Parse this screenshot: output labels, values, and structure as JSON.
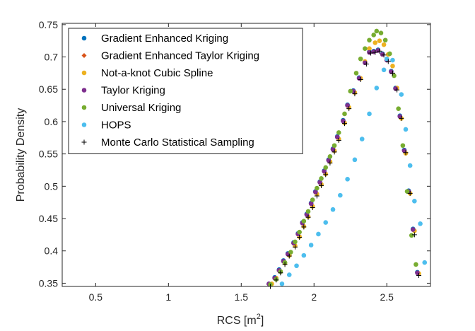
{
  "chart_data": {
    "type": "scatter",
    "title": "",
    "xlabel": "RCS [m",
    "xlabel_sup": "2",
    "xlabel_close": "]",
    "ylabel": "Probability Density",
    "xlim": [
      0.27,
      2.8
    ],
    "ylim": [
      0.345,
      0.752
    ],
    "xticks": [
      "0.5",
      "1",
      "1.5",
      "2",
      "2.5"
    ],
    "xtick_values": [
      0.5,
      1,
      1.5,
      2,
      2.5
    ],
    "yticks": [
      "0.35",
      "0.4",
      "0.45",
      "0.5",
      "0.55",
      "0.6",
      "0.65",
      "0.7",
      "0.75"
    ],
    "ytick_values": [
      0.35,
      0.4,
      0.45,
      0.5,
      0.55,
      0.6,
      0.65,
      0.7,
      0.75
    ],
    "grid": false,
    "legend_position": "top-left",
    "series": [
      {
        "name": "Gradient Enhanced Kriging",
        "marker": "dot",
        "color": "#0072BD",
        "points": [
          [
            1.69,
            0.349
          ],
          [
            1.73,
            0.359
          ],
          [
            1.76,
            0.371
          ],
          [
            1.79,
            0.385
          ],
          [
            1.82,
            0.396
          ],
          [
            1.86,
            0.413
          ],
          [
            1.89,
            0.427
          ],
          [
            1.92,
            0.444
          ],
          [
            1.95,
            0.457
          ],
          [
            1.98,
            0.474
          ],
          [
            2.01,
            0.492
          ],
          [
            2.04,
            0.507
          ],
          [
            2.07,
            0.524
          ],
          [
            2.1,
            0.541
          ],
          [
            2.13,
            0.558
          ],
          [
            2.16,
            0.577
          ],
          [
            2.2,
            0.602
          ],
          [
            2.23,
            0.626
          ],
          [
            2.27,
            0.648
          ],
          [
            2.31,
            0.668
          ],
          [
            2.35,
            0.692
          ],
          [
            2.38,
            0.708
          ],
          [
            2.41,
            0.709
          ],
          [
            2.44,
            0.711
          ],
          [
            2.47,
            0.705
          ],
          [
            2.5,
            0.696
          ],
          [
            2.53,
            0.678
          ],
          [
            2.56,
            0.652
          ],
          [
            2.59,
            0.609
          ],
          [
            2.62,
            0.556
          ],
          [
            2.65,
            0.493
          ],
          [
            2.68,
            0.434
          ],
          [
            2.71,
            0.367
          ]
        ]
      },
      {
        "name": "Gradient Enhanced Taylor Kriging",
        "marker": "diamond",
        "color": "#D95319",
        "points": [
          [
            1.69,
            0.348
          ],
          [
            1.73,
            0.357
          ],
          [
            1.76,
            0.369
          ],
          [
            1.79,
            0.383
          ],
          [
            1.82,
            0.395
          ],
          [
            1.86,
            0.411
          ],
          [
            1.89,
            0.426
          ],
          [
            1.92,
            0.443
          ],
          [
            1.95,
            0.456
          ],
          [
            1.98,
            0.473
          ],
          [
            2.01,
            0.491
          ],
          [
            2.04,
            0.506
          ],
          [
            2.07,
            0.523
          ],
          [
            2.1,
            0.54
          ],
          [
            2.13,
            0.557
          ],
          [
            2.16,
            0.576
          ],
          [
            2.2,
            0.601
          ],
          [
            2.23,
            0.625
          ],
          [
            2.27,
            0.647
          ],
          [
            2.31,
            0.667
          ],
          [
            2.35,
            0.691
          ],
          [
            2.38,
            0.707
          ],
          [
            2.41,
            0.708
          ],
          [
            2.44,
            0.71
          ],
          [
            2.47,
            0.704
          ],
          [
            2.5,
            0.695
          ],
          [
            2.53,
            0.677
          ],
          [
            2.56,
            0.651
          ],
          [
            2.59,
            0.608
          ],
          [
            2.62,
            0.555
          ],
          [
            2.65,
            0.492
          ],
          [
            2.68,
            0.433
          ],
          [
            2.71,
            0.366
          ]
        ]
      },
      {
        "name": "Not-a-knot Cubic Spline",
        "marker": "dot",
        "color": "#EDB120",
        "points": [
          [
            1.71,
            0.349
          ],
          [
            1.74,
            0.358
          ],
          [
            1.77,
            0.368
          ],
          [
            1.8,
            0.381
          ],
          [
            1.83,
            0.393
          ],
          [
            1.87,
            0.408
          ],
          [
            1.9,
            0.422
          ],
          [
            1.93,
            0.438
          ],
          [
            1.96,
            0.453
          ],
          [
            1.99,
            0.469
          ],
          [
            2.02,
            0.488
          ],
          [
            2.05,
            0.503
          ],
          [
            2.08,
            0.519
          ],
          [
            2.11,
            0.538
          ],
          [
            2.14,
            0.555
          ],
          [
            2.17,
            0.573
          ],
          [
            2.21,
            0.598
          ],
          [
            2.24,
            0.622
          ],
          [
            2.28,
            0.645
          ],
          [
            2.32,
            0.667
          ],
          [
            2.35,
            0.693
          ],
          [
            2.38,
            0.713
          ],
          [
            2.42,
            0.722
          ],
          [
            2.45,
            0.725
          ],
          [
            2.48,
            0.719
          ],
          [
            2.51,
            0.704
          ],
          [
            2.54,
            0.686
          ],
          [
            2.57,
            0.652
          ],
          [
            2.6,
            0.605
          ],
          [
            2.63,
            0.551
          ],
          [
            2.66,
            0.489
          ],
          [
            2.69,
            0.431
          ],
          [
            2.72,
            0.365
          ]
        ]
      },
      {
        "name": "Taylor Kriging",
        "marker": "dot",
        "color": "#7E2F8E",
        "points": [
          [
            1.69,
            0.349
          ],
          [
            1.73,
            0.358
          ],
          [
            1.76,
            0.37
          ],
          [
            1.79,
            0.384
          ],
          [
            1.82,
            0.395
          ],
          [
            1.86,
            0.412
          ],
          [
            1.89,
            0.426
          ],
          [
            1.92,
            0.443
          ],
          [
            1.95,
            0.456
          ],
          [
            1.98,
            0.473
          ],
          [
            2.01,
            0.491
          ],
          [
            2.04,
            0.506
          ],
          [
            2.07,
            0.523
          ],
          [
            2.1,
            0.54
          ],
          [
            2.13,
            0.557
          ],
          [
            2.16,
            0.576
          ],
          [
            2.2,
            0.601
          ],
          [
            2.23,
            0.625
          ],
          [
            2.27,
            0.647
          ],
          [
            2.31,
            0.667
          ],
          [
            2.35,
            0.691
          ],
          [
            2.38,
            0.707
          ],
          [
            2.41,
            0.708
          ],
          [
            2.44,
            0.71
          ],
          [
            2.47,
            0.704
          ],
          [
            2.5,
            0.695
          ],
          [
            2.53,
            0.677
          ],
          [
            2.56,
            0.651
          ],
          [
            2.59,
            0.608
          ],
          [
            2.62,
            0.555
          ],
          [
            2.65,
            0.492
          ],
          [
            2.68,
            0.433
          ],
          [
            2.71,
            0.366
          ]
        ]
      },
      {
        "name": "Universal Kriging",
        "marker": "dot",
        "color": "#77AC30",
        "points": [
          [
            1.7,
            0.348
          ],
          [
            1.74,
            0.356
          ],
          [
            1.77,
            0.368
          ],
          [
            1.8,
            0.382
          ],
          [
            1.84,
            0.398
          ],
          [
            1.87,
            0.414
          ],
          [
            1.9,
            0.429
          ],
          [
            1.93,
            0.446
          ],
          [
            1.96,
            0.461
          ],
          [
            1.99,
            0.479
          ],
          [
            2.02,
            0.497
          ],
          [
            2.05,
            0.512
          ],
          [
            2.08,
            0.529
          ],
          [
            2.11,
            0.546
          ],
          [
            2.14,
            0.563
          ],
          [
            2.17,
            0.583
          ],
          [
            2.21,
            0.612
          ],
          [
            2.25,
            0.647
          ],
          [
            2.29,
            0.675
          ],
          [
            2.32,
            0.697
          ],
          [
            2.35,
            0.713
          ],
          [
            2.38,
            0.726
          ],
          [
            2.41,
            0.734
          ],
          [
            2.43,
            0.74
          ],
          [
            2.46,
            0.737
          ],
          [
            2.49,
            0.726
          ],
          [
            2.52,
            0.705
          ],
          [
            2.55,
            0.671
          ],
          [
            2.58,
            0.62
          ],
          [
            2.61,
            0.563
          ],
          [
            2.64,
            0.492
          ],
          [
            2.67,
            0.424
          ],
          [
            2.7,
            0.379
          ]
        ]
      },
      {
        "name": "HOPS",
        "marker": "dot",
        "color": "#4DBEEE",
        "points": [
          [
            1.78,
            0.349
          ],
          [
            1.83,
            0.363
          ],
          [
            1.88,
            0.377
          ],
          [
            1.93,
            0.393
          ],
          [
            1.98,
            0.409
          ],
          [
            2.03,
            0.426
          ],
          [
            2.08,
            0.444
          ],
          [
            2.13,
            0.464
          ],
          [
            2.18,
            0.486
          ],
          [
            2.23,
            0.511
          ],
          [
            2.28,
            0.541
          ],
          [
            2.33,
            0.573
          ],
          [
            2.38,
            0.612
          ],
          [
            2.43,
            0.652
          ],
          [
            2.48,
            0.68
          ],
          [
            2.5,
            0.697
          ],
          [
            2.54,
            0.695
          ],
          [
            2.6,
            0.642
          ],
          [
            2.63,
            0.588
          ],
          [
            2.66,
            0.532
          ],
          [
            2.69,
            0.477
          ],
          [
            2.73,
            0.442
          ],
          [
            2.76,
            0.382
          ]
        ]
      },
      {
        "name": "Monte Carlo Statistical Sampling",
        "marker": "plus",
        "color": "#000000",
        "points": [
          [
            1.7,
            0.345
          ],
          [
            1.74,
            0.355
          ],
          [
            1.77,
            0.366
          ],
          [
            1.8,
            0.379
          ],
          [
            1.83,
            0.392
          ],
          [
            1.87,
            0.406
          ],
          [
            1.9,
            0.421
          ],
          [
            1.93,
            0.437
          ],
          [
            1.96,
            0.452
          ],
          [
            1.99,
            0.467
          ],
          [
            2.02,
            0.485
          ],
          [
            2.05,
            0.501
          ],
          [
            2.08,
            0.518
          ],
          [
            2.11,
            0.536
          ],
          [
            2.14,
            0.553
          ],
          [
            2.17,
            0.571
          ],
          [
            2.21,
            0.597
          ],
          [
            2.24,
            0.62
          ],
          [
            2.28,
            0.643
          ],
          [
            2.32,
            0.665
          ],
          [
            2.36,
            0.689
          ],
          [
            2.39,
            0.706
          ],
          [
            2.42,
            0.707
          ],
          [
            2.45,
            0.709
          ],
          [
            2.48,
            0.703
          ],
          [
            2.51,
            0.693
          ],
          [
            2.54,
            0.675
          ],
          [
            2.57,
            0.649
          ],
          [
            2.6,
            0.605
          ],
          [
            2.63,
            0.552
          ],
          [
            2.66,
            0.489
          ],
          [
            2.69,
            0.425
          ],
          [
            2.72,
            0.362
          ]
        ]
      }
    ]
  }
}
